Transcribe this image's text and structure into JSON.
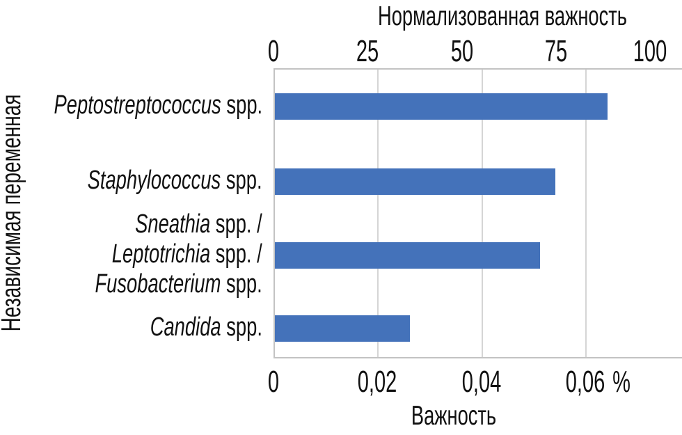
{
  "chart_data": {
    "type": "bar",
    "orientation": "horizontal",
    "top_axis": {
      "title": "Нормализованная важность",
      "ticks": [
        "0",
        "25",
        "50",
        "75",
        "100"
      ],
      "tick_values": [
        0,
        25,
        50,
        75,
        100
      ],
      "range": [
        0,
        108.5
      ]
    },
    "bottom_axis": {
      "title": "Важность",
      "ticks": [
        "0",
        "0,02",
        "0,04",
        "0,06"
      ],
      "tick_values": [
        0,
        0.02,
        0.04,
        0.06
      ],
      "unit": "%",
      "range": [
        0,
        0.0786
      ]
    },
    "ylabel": "Независимая переменная",
    "categories": [
      {
        "name": "Peptostreptococcus spp.",
        "label_lines": [
          [
            {
              "t": "Peptostreptococcus",
              "i": true
            },
            {
              "t": " spp.",
              "i": false
            }
          ]
        ],
        "importance": 0.064,
        "normalized": 89
      },
      {
        "name": "Staphylococcus spp.",
        "label_lines": [
          [
            {
              "t": "Staphylococcus",
              "i": true
            },
            {
              "t": " spp.",
              "i": false
            }
          ]
        ],
        "importance": 0.054,
        "normalized": 74
      },
      {
        "name": "Sneathia spp. / Leptotrichia spp. / Fusobacterium spp.",
        "label_lines": [
          [
            {
              "t": "Sneathia",
              "i": true
            },
            {
              "t": " spp. /",
              "i": false
            }
          ],
          [
            {
              "t": "Leptotrichia",
              "i": true
            },
            {
              "t": " spp. /",
              "i": false
            }
          ],
          [
            {
              "t": "Fusobacterium",
              "i": true
            },
            {
              "t": " spp.",
              "i": false
            }
          ]
        ],
        "importance": 0.051,
        "normalized": 71
      },
      {
        "name": "Candida spp.",
        "label_lines": [
          [
            {
              "t": "Candida",
              "i": true
            },
            {
              "t": " spp.",
              "i": false
            }
          ]
        ],
        "importance": 0.026,
        "normalized": 36
      }
    ],
    "colors": {
      "bar": "#4472BA",
      "grid": "#D5D5D5",
      "border": "#C3C3C3",
      "text": "#111111"
    },
    "grid": true,
    "legend": false
  }
}
